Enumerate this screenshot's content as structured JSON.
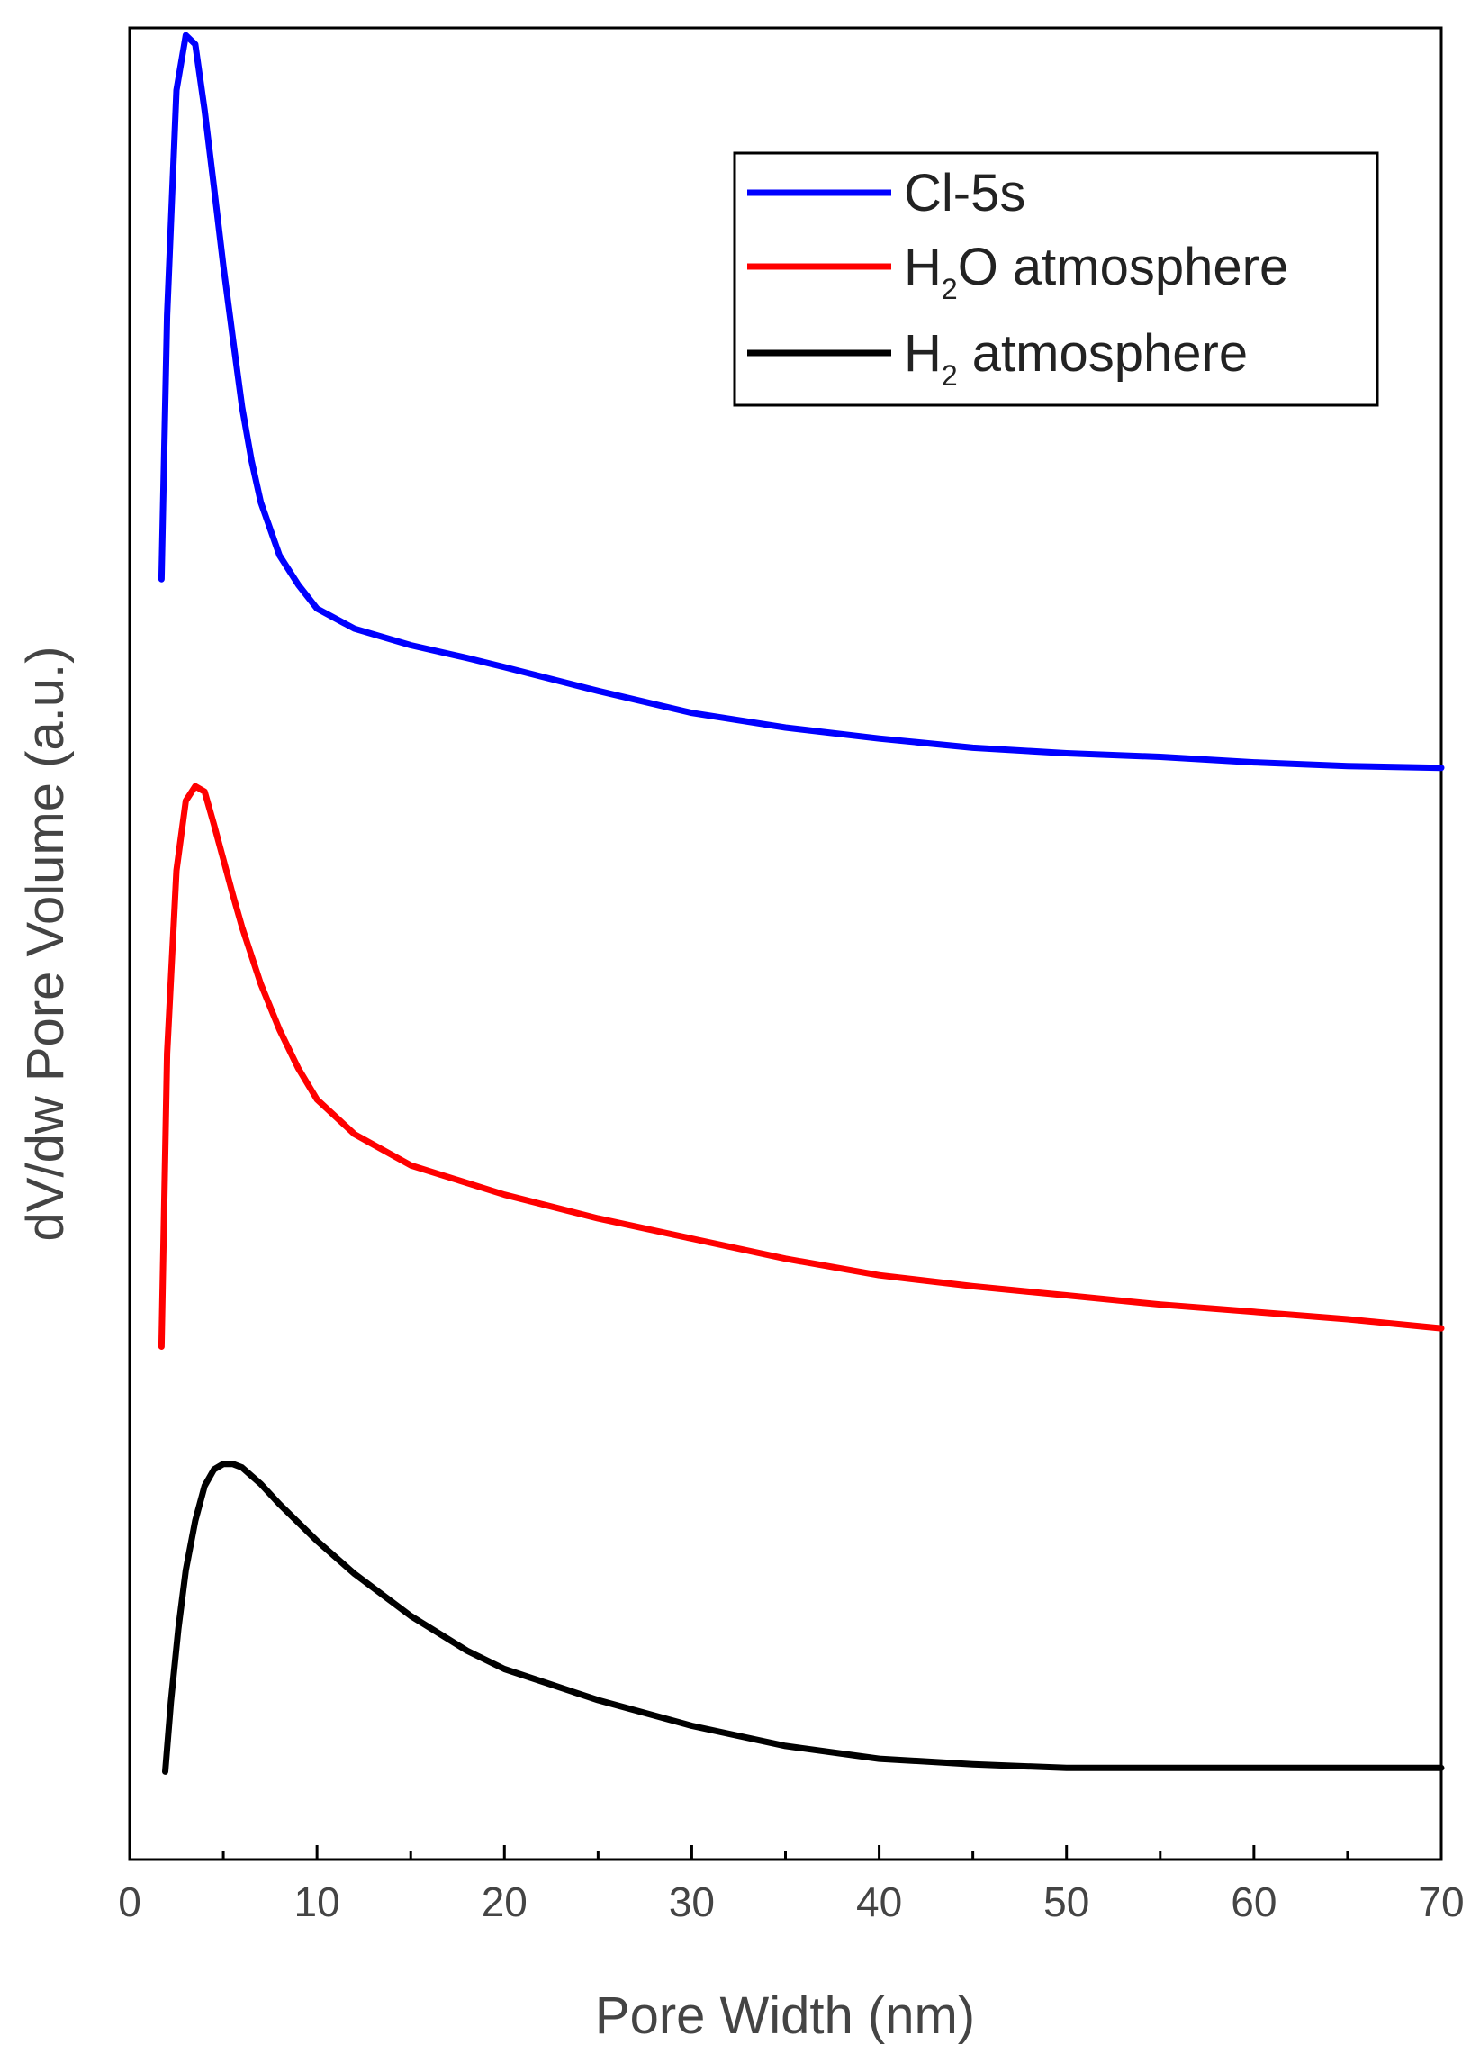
{
  "chart_data": {
    "type": "line",
    "title": "",
    "xlabel": "Pore Width (nm)",
    "ylabel": "dV/dw Pore Volume (a.u.)",
    "xlim": [
      0,
      70
    ],
    "ylim": [
      0,
      100
    ],
    "x_ticks": [
      0,
      10,
      20,
      30,
      40,
      50,
      60,
      70
    ],
    "x_tick_labels": [
      "0",
      "10",
      "20",
      "30",
      "40",
      "50",
      "60",
      "70"
    ],
    "y_ticks_shown": false,
    "grid": false,
    "legend_position": "top-right",
    "series": [
      {
        "name": "Cl-5s",
        "legend_main": "Cl-5s",
        "legend_sub": "",
        "legend_tail": "",
        "color": "#0000ff",
        "x": [
          1.7,
          2.0,
          2.5,
          3.0,
          3.5,
          4.0,
          4.5,
          5.0,
          5.5,
          6.0,
          6.5,
          7.0,
          8.0,
          9.0,
          10.0,
          12.0,
          15.0,
          18.0,
          20.0,
          25.0,
          30.0,
          35.0,
          40.0,
          45.0,
          50.0,
          55.0,
          60.0,
          65.0,
          70.0
        ],
        "y": [
          69.9,
          84.3,
          96.6,
          99.6,
          99.1,
          95.5,
          91.3,
          87.0,
          83.1,
          79.3,
          76.4,
          74.1,
          71.2,
          69.6,
          68.3,
          67.2,
          66.3,
          65.6,
          65.1,
          63.8,
          62.6,
          61.8,
          61.2,
          60.7,
          60.4,
          60.2,
          59.9,
          59.7,
          59.6
        ]
      },
      {
        "name": "H2O atmosphere",
        "legend_main": "H",
        "legend_sub": "2",
        "legend_tail": "O atmosphere",
        "color": "#ff0000",
        "x": [
          1.7,
          2.0,
          2.5,
          3.0,
          3.5,
          4.0,
          4.5,
          5.0,
          5.5,
          6.0,
          7.0,
          8.0,
          9.0,
          10.0,
          12.0,
          15.0,
          20.0,
          25.0,
          30.0,
          35.0,
          40.0,
          45.0,
          50.0,
          55.0,
          60.0,
          65.0,
          70.0
        ],
        "y": [
          28.0,
          44.0,
          54.0,
          57.8,
          58.6,
          58.3,
          56.5,
          54.6,
          52.7,
          50.9,
          47.8,
          45.3,
          43.2,
          41.5,
          39.6,
          37.9,
          36.3,
          35.0,
          33.9,
          32.8,
          31.9,
          31.3,
          30.8,
          30.3,
          29.9,
          29.5,
          29.0
        ]
      },
      {
        "name": "H2 atmosphere",
        "legend_main": "H",
        "legend_sub": "2",
        "legend_tail": " atmosphere",
        "color": "#000000",
        "x": [
          1.9,
          2.2,
          2.6,
          3.0,
          3.5,
          4.0,
          4.5,
          5.0,
          5.5,
          6.0,
          7.0,
          8.0,
          10.0,
          12.0,
          15.0,
          18.0,
          20.0,
          25.0,
          30.0,
          35.0,
          40.0,
          45.0,
          50.0,
          55.0,
          60.0,
          65.0,
          70.0
        ],
        "y": [
          4.8,
          8.6,
          12.6,
          15.8,
          18.5,
          20.4,
          21.3,
          21.6,
          21.6,
          21.4,
          20.5,
          19.4,
          17.4,
          15.6,
          13.3,
          11.4,
          10.4,
          8.7,
          7.3,
          6.2,
          5.5,
          5.2,
          5.0,
          5.0,
          5.0,
          5.0,
          5.0
        ]
      }
    ]
  }
}
